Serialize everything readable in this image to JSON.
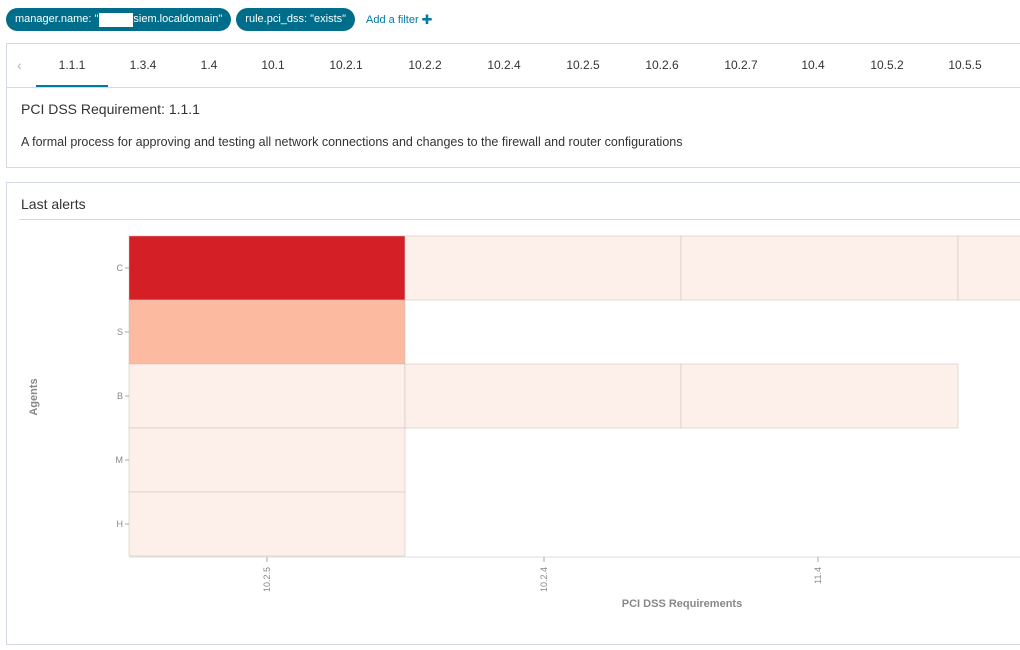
{
  "filters": [
    {
      "prefix": "manager.name: \"",
      "suffix": "siem.localdomain\""
    },
    {
      "label": "rule.pci_dss: \"exists\""
    }
  ],
  "add_filter_label": "Add a filter",
  "tabs": [
    "1.1.1",
    "1.3.4",
    "1.4",
    "10.1",
    "10.2.1",
    "10.2.2",
    "10.2.4",
    "10.2.5",
    "10.2.6",
    "10.2.7",
    "10.4",
    "10.5.2",
    "10.5.5"
  ],
  "active_tab": "1.1.1",
  "requirement": {
    "title": "PCI DSS Requirement: 1.1.1",
    "description": "A formal process for approving and testing all network connections and changes to the firewall and router configurations"
  },
  "alerts": {
    "title": "Last alerts"
  },
  "chart_data": {
    "type": "heatmap",
    "xlabel": "PCI DSS Requirements",
    "ylabel": "Agents",
    "x_ticks": [
      "10.2.5",
      "10.2.4",
      "11.4"
    ],
    "y_ticks": [
      "C",
      "S",
      "B",
      "M",
      "H"
    ],
    "columns": [
      "10.2.5",
      "10.2.4",
      "11.4",
      ""
    ],
    "cells": [
      {
        "row": 0,
        "col": 0,
        "color": "#d41f26"
      },
      {
        "row": 0,
        "col": 1,
        "color": "#fdf0eb"
      },
      {
        "row": 0,
        "col": 2,
        "color": "#fdf0eb"
      },
      {
        "row": 0,
        "col": 3,
        "color": "#fdf0eb"
      },
      {
        "row": 1,
        "col": 0,
        "color": "#fcbba1"
      },
      {
        "row": 2,
        "col": 0,
        "color": "#fdf0eb"
      },
      {
        "row": 2,
        "col": 1,
        "color": "#fdf0eb"
      },
      {
        "row": 2,
        "col": 2,
        "color": "#fdf0eb"
      },
      {
        "row": 3,
        "col": 0,
        "color": "#fdf0eb"
      },
      {
        "row": 4,
        "col": 0,
        "color": "#fdf0eb"
      }
    ]
  }
}
